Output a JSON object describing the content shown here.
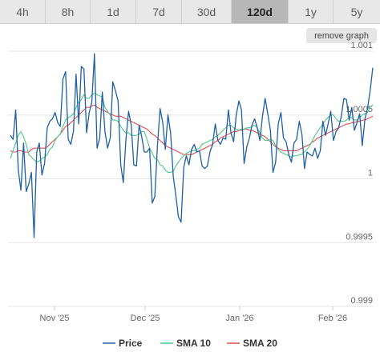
{
  "tabs": [
    {
      "label": "4h",
      "active": false
    },
    {
      "label": "8h",
      "active": false
    },
    {
      "label": "1d",
      "active": false
    },
    {
      "label": "7d",
      "active": false
    },
    {
      "label": "30d",
      "active": false
    },
    {
      "label": "120d",
      "active": true
    },
    {
      "label": "1y",
      "active": false
    },
    {
      "label": "5y",
      "active": false
    }
  ],
  "remove_graph_label": "remove graph",
  "chart_data": {
    "type": "line",
    "x_ticks": [
      "Nov '25",
      "Dec '25",
      "Jan '26",
      "Feb '26"
    ],
    "y_ticks": [
      "1.001",
      "1.0005",
      "1",
      "0.9995",
      "0.999"
    ],
    "ylim": [
      0.999,
      1.001
    ],
    "grid": true,
    "legend_position": "bottom",
    "colors": {
      "price": "#1f5fa3",
      "sma10": "#4ec98a",
      "sma20": "#e0504f"
    },
    "series": [
      {
        "name": "Price",
        "values": [
          1.00034,
          1.00031,
          1.00054,
          1.00007,
          0.99991,
          1.00028,
          0.9999,
          0.99996,
          1.00005,
          0.99954,
          1.00021,
          1.00028,
          1.00003,
          1.00012,
          1.0004,
          1.00045,
          1.00047,
          1.00052,
          1.00044,
          1.00041,
          1.00078,
          1.00084,
          1.00031,
          1.00027,
          1.00037,
          1.00082,
          1.00043,
          1.00088,
          1.00086,
          1.00036,
          1.00052,
          1.0006,
          1.00098,
          1.00024,
          1.00032,
          1.00068,
          1.00037,
          1.00024,
          1.00032,
          1.00076,
          1.00069,
          1.00061,
          1.00011,
          0.99997,
          1.00031,
          1.00053,
          1.00042,
          1.00011,
          1.0001,
          1.00042,
          1.00033,
          1.00021,
          1.00021,
          1.00024,
          0.99981,
          0.99986,
          1.00026,
          1.00055,
          1.00044,
          1.00023,
          1.0005,
          1.00036,
          1.00002,
          0.99987,
          0.9997,
          0.99966,
          1.00009,
          1.00018,
          1.00011,
          1.00023,
          1.00027,
          1.00021,
          1.00022,
          1.0001,
          1.00008,
          1.0001,
          1.00021,
          1.00027,
          1.00043,
          1.0003,
          1.00027,
          1.00032,
          1.00031,
          1.00054,
          1.00036,
          1.00029,
          1.0005,
          1.00061,
          1.00054,
          1.00012,
          1.00025,
          1.00032,
          1.00042,
          1.00047,
          1.0004,
          1.0003,
          1.00049,
          1.00063,
          1.00051,
          1.00038,
          1.00005,
          1.00013,
          1.00043,
          1.00052,
          1.00032,
          1.00029,
          1.00019,
          1.00013,
          1.00028,
          1.00031,
          1.00045,
          1.00035,
          1.00008,
          1.00021,
          1.00019,
          1.00018,
          1.00024,
          1.00016,
          1.00022,
          1.00045,
          1.00034,
          1.00043,
          1.00053,
          1.0003,
          1.00037,
          1.0004,
          1.00049,
          1.00063,
          1.00062,
          1.00046,
          1.00056,
          1.00038,
          1.00044,
          1.00051,
          1.00026,
          1.00047,
          1.00055,
          1.00069,
          1.00087
        ]
      },
      {
        "name": "SMA 10",
        "values": [
          1.00016,
          1.00022,
          1.00028,
          1.00034,
          1.00037,
          1.00033,
          1.00027,
          1.00019,
          1.00017,
          1.00015,
          1.00013,
          1.00014,
          1.00016,
          1.00017,
          1.00019,
          1.00023,
          1.00025,
          1.0003,
          1.00033,
          1.00035,
          1.00041,
          1.00046,
          1.00048,
          1.00049,
          1.00051,
          1.00056,
          1.0006,
          1.00062,
          1.00066,
          1.00063,
          1.00063,
          1.00066,
          1.00067,
          1.00066,
          1.00065,
          1.00064,
          1.00056,
          1.00053,
          1.0005,
          1.00046,
          1.00046,
          1.00045,
          1.00041,
          1.00038,
          1.00036,
          1.00036,
          1.00034,
          1.00034,
          1.00034,
          1.00035,
          1.00037,
          1.00037,
          1.00031,
          1.00024,
          1.0002,
          1.00016,
          1.00015,
          1.00011,
          1.0001,
          1.00007,
          1.00005,
          1.00005,
          1.00006,
          1.0001,
          1.00013,
          1.00016,
          1.00018,
          1.0002,
          1.00021,
          1.00022,
          1.00022,
          1.00023,
          1.00024,
          1.00027,
          1.00028,
          1.00029,
          1.0003,
          1.00031,
          1.00033,
          1.00034,
          1.00036,
          1.00038,
          1.0004,
          1.00042,
          1.00042,
          1.0004,
          1.00039,
          1.00038,
          1.00039,
          1.00039,
          1.0004,
          1.0004,
          1.00041,
          1.00042,
          1.0004,
          1.00036,
          1.00032,
          1.0003,
          1.0003,
          1.00031,
          1.0003,
          1.00026,
          1.00023,
          1.00021,
          1.0002,
          1.00019,
          1.00018,
          1.00017,
          1.00018,
          1.00018,
          1.00019,
          1.00019,
          1.00021,
          1.00023,
          1.00026,
          1.0003,
          1.00034,
          1.00037,
          1.0004,
          1.00043,
          1.00046,
          1.00048,
          1.0005,
          1.0005,
          1.00047,
          1.00045,
          1.00045,
          1.00045,
          1.00046,
          1.00048,
          1.00048,
          1.00046,
          1.00046,
          1.00048,
          1.0005,
          1.00051,
          1.00052,
          1.00056,
          1.00058
        ]
      },
      {
        "name": "SMA 20",
        "values": [
          1.00022,
          1.00021,
          1.00021,
          1.00022,
          1.00022,
          1.00021,
          1.00021,
          1.00021,
          1.00023,
          1.00024,
          1.00024,
          1.00024,
          1.00024,
          1.00024,
          1.00025,
          1.00027,
          1.00029,
          1.00031,
          1.00033,
          1.00035,
          1.00038,
          1.00041,
          1.00042,
          1.00044,
          1.00046,
          1.00048,
          1.0005,
          1.00052,
          1.00054,
          1.00056,
          1.00056,
          1.00057,
          1.00058,
          1.00056,
          1.00055,
          1.00054,
          1.00053,
          1.00052,
          1.00051,
          1.0005,
          1.00049,
          1.00049,
          1.00049,
          1.00048,
          1.00047,
          1.00046,
          1.00045,
          1.00044,
          1.00043,
          1.00042,
          1.00041,
          1.0004,
          1.00039,
          1.00037,
          1.00035,
          1.00034,
          1.00032,
          1.0003,
          1.00028,
          1.00026,
          1.00025,
          1.00024,
          1.00023,
          1.00022,
          1.00021,
          1.0002,
          1.00019,
          1.00019,
          1.00019,
          1.00019,
          1.0002,
          1.00021,
          1.00022,
          1.00023,
          1.00024,
          1.00025,
          1.00026,
          1.00027,
          1.00029,
          1.0003,
          1.00032,
          1.00033,
          1.00034,
          1.00035,
          1.00036,
          1.00037,
          1.00037,
          1.00038,
          1.00038,
          1.00039,
          1.00039,
          1.00038,
          1.00038,
          1.00037,
          1.00036,
          1.00035,
          1.00034,
          1.00033,
          1.00031,
          1.00029,
          1.00027,
          1.00025,
          1.00024,
          1.00023,
          1.00022,
          1.00022,
          1.00022,
          1.00022,
          1.00022,
          1.00022,
          1.00023,
          1.00024,
          1.00025,
          1.00026,
          1.00027,
          1.00029,
          1.0003,
          1.00032,
          1.00033,
          1.00034,
          1.00035,
          1.00036,
          1.00037,
          1.00038,
          1.00039,
          1.0004,
          1.00041,
          1.00042,
          1.00043,
          1.00043,
          1.00044,
          1.00044,
          1.00045,
          1.00045,
          1.00046,
          1.00046,
          1.00047,
          1.00048,
          1.00049
        ]
      }
    ]
  }
}
